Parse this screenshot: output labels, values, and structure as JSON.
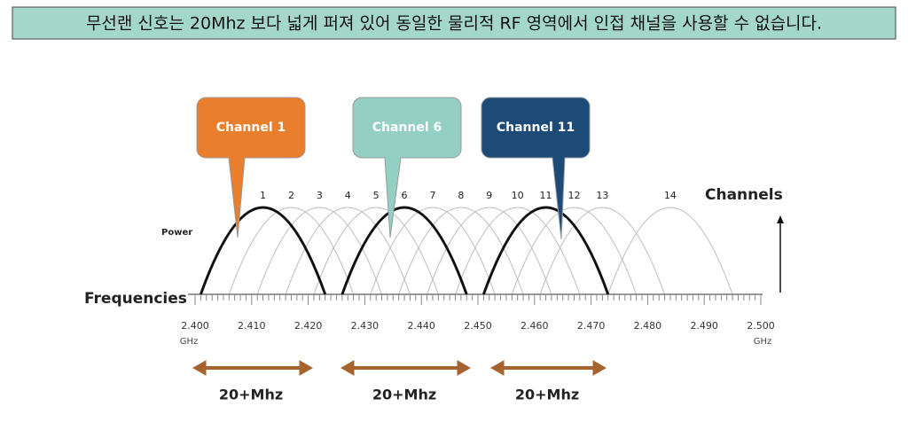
{
  "header": {
    "title": "무선랜 신호는 20Mhz 보다 넓게 퍼져 있어 동일한 물리적 RF 영역에서 인접 채널을 사용할 수 없습니다."
  },
  "callouts": [
    {
      "label": "Channel 1"
    },
    {
      "label": "Channel 6"
    },
    {
      "label": "Channel 11"
    }
  ],
  "channels": {
    "title": "Channels",
    "labels": [
      "1",
      "2",
      "3",
      "4",
      "5",
      "6",
      "7",
      "8",
      "9",
      "10",
      "11",
      "12",
      "13",
      "14"
    ]
  },
  "power_label": "Power",
  "frequencies": {
    "title": "Frequencies",
    "labels": [
      "2.400",
      "2.410",
      "2.420",
      "2.430",
      "2.440",
      "2.450",
      "2.460",
      "2.470",
      "2.480",
      "2.490",
      "2.500"
    ],
    "unit_left": "GHz",
    "unit_right": "GHz"
  },
  "bandwidth_labels": [
    "20+Mhz",
    "20+Mhz",
    "20+Mhz"
  ]
}
